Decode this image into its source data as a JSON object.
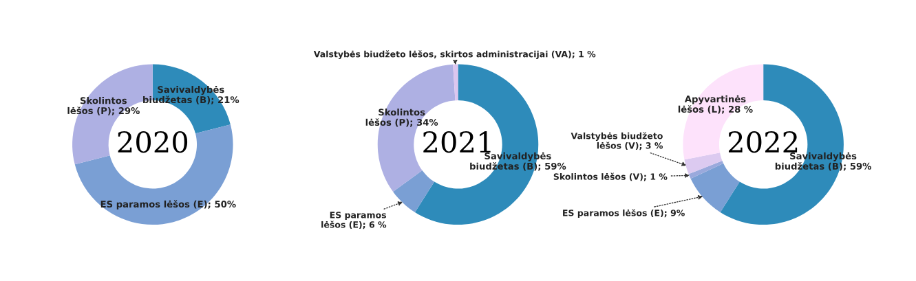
{
  "chart_data": [
    {
      "type": "donut",
      "title": "2020",
      "categories": [
        "Savivaldybės\nbiudžetas (B)",
        "ES paramos lėšos (E)",
        "Skolintos\nlėšos (P)"
      ],
      "values": [
        21,
        50,
        29
      ],
      "value_labels": [
        "21%",
        "50%",
        "29%"
      ],
      "colors": [
        "#2e8bba",
        "#7a9fd4",
        "#aeb0e3"
      ],
      "legend": false
    },
    {
      "type": "donut",
      "title": "2021",
      "categories": [
        "Savivaldybės\nbiudžetas (B)",
        "ES paramos\nlėšos (E)",
        "Skolintos\nlėšos (P)",
        "Valstybės biudžeto lėšos, skirtos administracijai (VA)"
      ],
      "values": [
        59,
        6,
        34,
        1
      ],
      "value_labels": [
        "59%",
        "6 %",
        "34%",
        "1 %"
      ],
      "colors": [
        "#2e8bba",
        "#7a9fd4",
        "#aeb0e3",
        "#dcc6ef"
      ],
      "legend": false
    },
    {
      "type": "donut",
      "title": "2022",
      "categories": [
        "Savivaldybės\nbiudžetas (B)",
        "ES paramos lėšos (E)",
        "Skolintos lėšos (V)",
        "Valstybės biudžeto\nlėšos (V)",
        "Apyvartinės\nlėšos (L)"
      ],
      "values": [
        59,
        9,
        1,
        3,
        28
      ],
      "value_labels": [
        "59%",
        "9%",
        "1 %",
        "3 %",
        "28 %"
      ],
      "colors": [
        "#2e8bba",
        "#7a9fd4",
        "#9aa9dc",
        "#dccaf0",
        "#fde2fb"
      ],
      "legend": false
    }
  ]
}
